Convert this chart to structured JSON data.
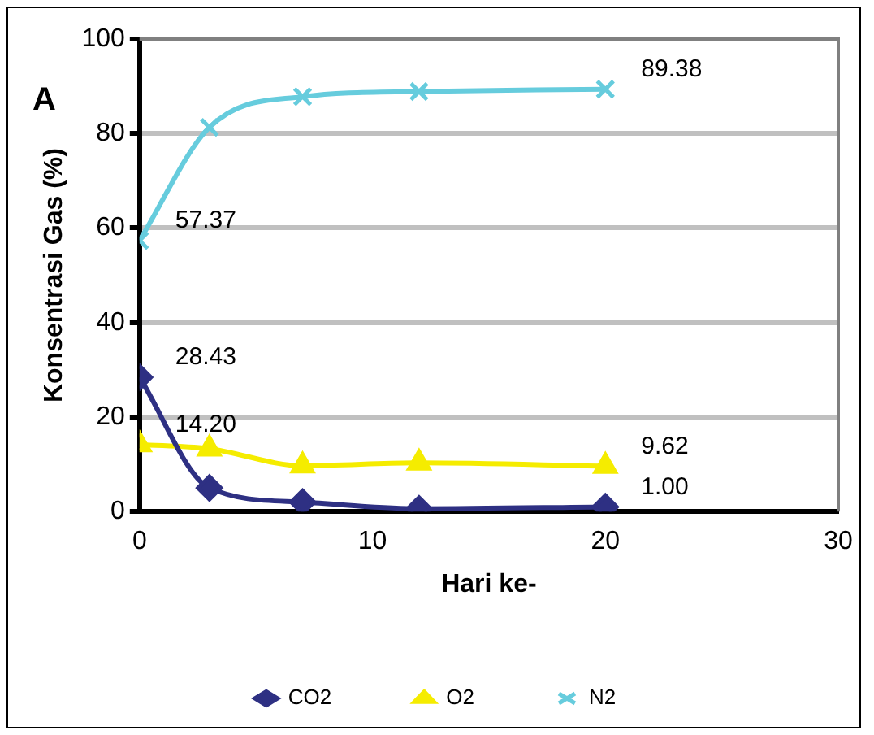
{
  "chart_data": {
    "type": "line",
    "xlabel": "Hari ke-",
    "ylabel": "Konsentrasi Gas (%)",
    "annotations": [
      "A"
    ],
    "xlim": [
      0,
      30
    ],
    "xticks": [
      0,
      10,
      20,
      30
    ],
    "ylim": [
      0,
      100
    ],
    "yticks": [
      0,
      20,
      40,
      60,
      80,
      100
    ],
    "grid": "y",
    "legend": "bottom",
    "series": [
      {
        "name": "CO2",
        "color": "#2e3083",
        "marker": "diamond",
        "x": [
          0,
          3,
          7,
          12,
          20
        ],
        "values": [
          28.43,
          5,
          2,
          0.6,
          1.0
        ],
        "value_labels": [
          "28.43",
          null,
          null,
          null,
          "1.00"
        ]
      },
      {
        "name": "O2",
        "color": "#f5ec00",
        "marker": "triangle",
        "x": [
          0,
          3,
          7,
          12,
          20
        ],
        "values": [
          14.2,
          13.3,
          9.7,
          10.3,
          9.62
        ],
        "value_labels": [
          "14.20",
          null,
          null,
          null,
          "9.62"
        ]
      },
      {
        "name": "N2",
        "color": "#66ccdd",
        "marker": "cross",
        "x": [
          0,
          3,
          7,
          12,
          20
        ],
        "values": [
          57.37,
          81.3,
          87.8,
          88.9,
          89.38
        ],
        "value_labels": [
          "57.37",
          null,
          null,
          null,
          "89.38"
        ]
      }
    ]
  }
}
